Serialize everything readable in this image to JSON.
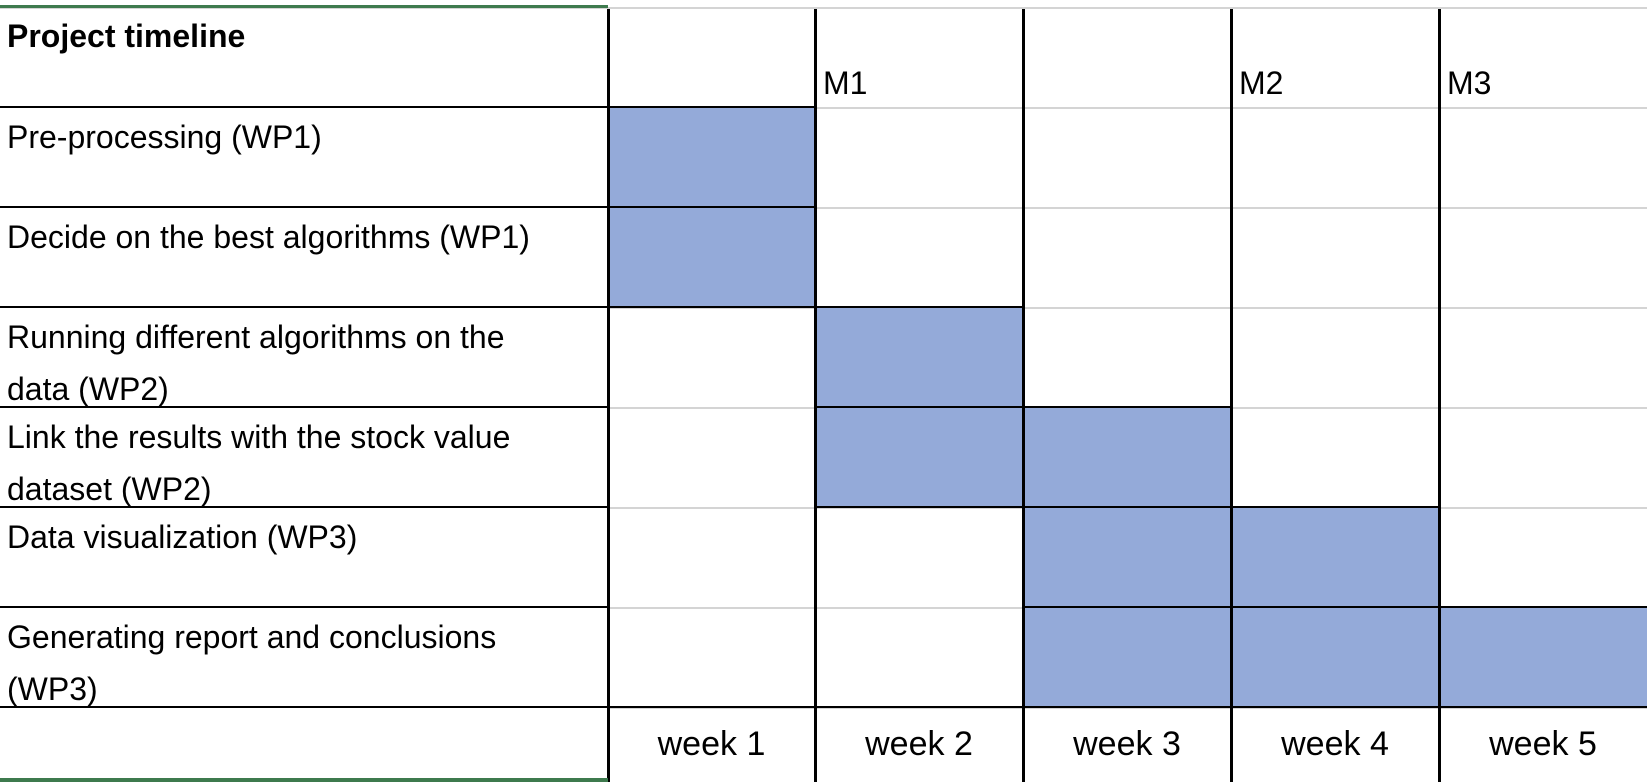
{
  "sheet": {
    "title": "Project timeline",
    "milestones": [
      "",
      "M1",
      "",
      "M2",
      "M3"
    ],
    "weeks": [
      "week 1",
      "week 2",
      "week 3",
      "week 4",
      "week 5"
    ],
    "tasks": [
      {
        "label": [
          "Pre-processing (WP1)"
        ],
        "weeks": [
          1
        ]
      },
      {
        "label": [
          "Decide on the best algorithms (WP1)"
        ],
        "weeks": [
          1
        ]
      },
      {
        "label": [
          "Running different algorithms on the",
          "data (WP2)"
        ],
        "weeks": [
          2
        ]
      },
      {
        "label": [
          "Link the results with the stock value",
          "dataset (WP2)"
        ],
        "weeks": [
          2,
          3
        ]
      },
      {
        "label": [
          "Data visualization (WP3)"
        ],
        "weeks": [
          3,
          4
        ]
      },
      {
        "label": [
          "Generating report and conclusions",
          "(WP3)"
        ],
        "weeks": [
          3,
          4,
          5
        ]
      }
    ],
    "colors": {
      "fill": "#94aad9",
      "frame_accent": "#3e7a4e"
    }
  }
}
